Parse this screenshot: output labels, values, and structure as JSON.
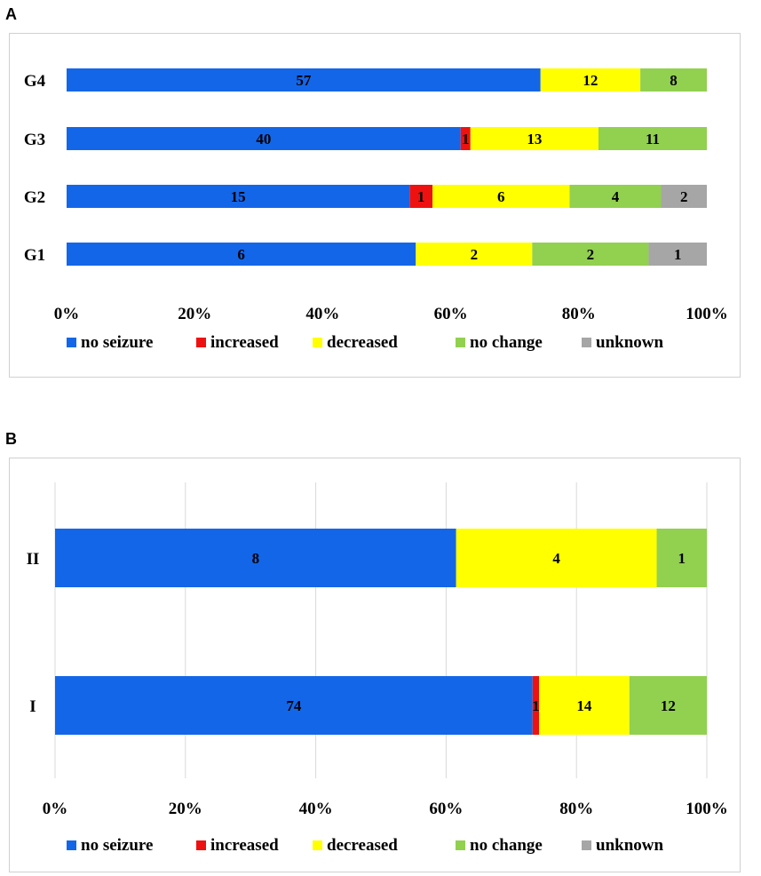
{
  "panels": [
    {
      "label": "A"
    },
    {
      "label": "B"
    }
  ],
  "colors": {
    "no seizure": "#1466e8",
    "increased": "#ee1111",
    "decreased": "#ffff00",
    "no change": "#92d050",
    "unknown": "#a6a6a6"
  },
  "chart_data": [
    {
      "type": "bar",
      "orientation": "horizontal",
      "stacking": "percent",
      "categories": [
        "G4",
        "G3",
        "G2",
        "G1"
      ],
      "series": [
        {
          "name": "no seizure",
          "values": [
            57,
            40,
            15,
            6
          ]
        },
        {
          "name": "increased",
          "values": [
            0,
            1,
            1,
            0
          ]
        },
        {
          "name": "decreased",
          "values": [
            12,
            13,
            6,
            2
          ]
        },
        {
          "name": "no change",
          "values": [
            8,
            11,
            4,
            2
          ]
        },
        {
          "name": "unknown",
          "values": [
            0,
            0,
            2,
            1
          ]
        }
      ],
      "xticks": [
        "0%",
        "20%",
        "40%",
        "60%",
        "80%",
        "100%"
      ],
      "xlim": [
        0,
        100
      ],
      "grid": false,
      "legend": "bottom"
    },
    {
      "type": "bar",
      "orientation": "horizontal",
      "stacking": "percent",
      "categories": [
        "II",
        "I"
      ],
      "series": [
        {
          "name": "no seizure",
          "values": [
            8,
            74
          ]
        },
        {
          "name": "increased",
          "values": [
            0,
            1
          ]
        },
        {
          "name": "decreased",
          "values": [
            4,
            14
          ]
        },
        {
          "name": "no change",
          "values": [
            1,
            12
          ]
        },
        {
          "name": "unknown",
          "values": [
            0,
            0
          ]
        }
      ],
      "xticks": [
        "0%",
        "20%",
        "40%",
        "60%",
        "80%",
        "100%"
      ],
      "xlim": [
        0,
        100
      ],
      "grid": true,
      "legend": "bottom"
    }
  ]
}
